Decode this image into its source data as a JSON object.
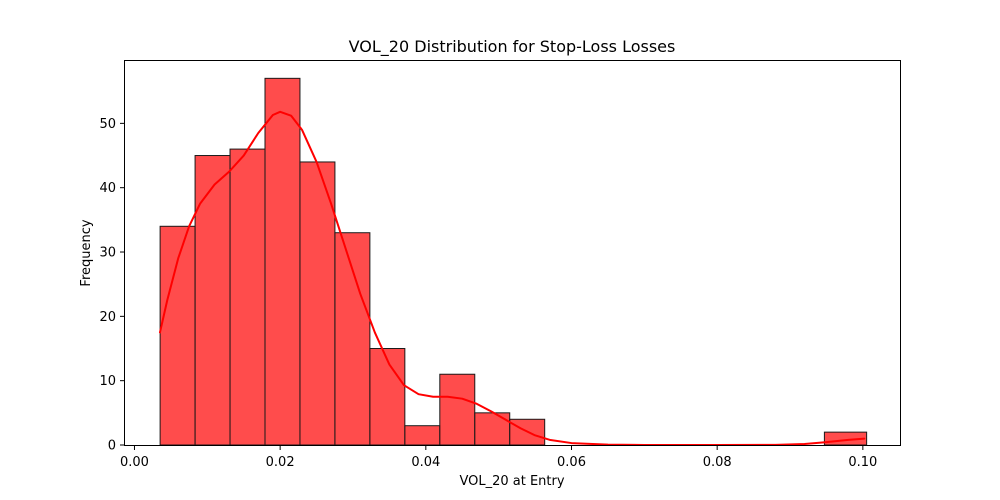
{
  "chart_data": {
    "type": "bar",
    "title": "VOL_20 Distribution for Stop-Loss Losses",
    "xlabel": "VOL_20 at Entry",
    "ylabel": "Frequency",
    "xlim": [
      -0.0013,
      0.1051
    ],
    "ylim": [
      0,
      59.85
    ],
    "xticks": [
      0.0,
      0.02,
      0.04,
      0.06,
      0.08,
      0.1
    ],
    "xtick_labels": [
      "0.00",
      "0.02",
      "0.04",
      "0.06",
      "0.08",
      "0.10"
    ],
    "yticks": [
      0,
      10,
      20,
      30,
      40,
      50
    ],
    "ytick_labels": [
      "0",
      "10",
      "20",
      "30",
      "40",
      "50"
    ],
    "grid": false,
    "legend": false,
    "bar_color": "#ff0000",
    "bar_opacity": 0.7,
    "bar_edge_color": "#1a1a1a",
    "bins": [
      {
        "x0": 0.00352,
        "x1": 0.00832,
        "count": 34
      },
      {
        "x0": 0.00832,
        "x1": 0.01312,
        "count": 45
      },
      {
        "x0": 0.01312,
        "x1": 0.01792,
        "count": 46
      },
      {
        "x0": 0.01792,
        "x1": 0.02272,
        "count": 57
      },
      {
        "x0": 0.02272,
        "x1": 0.02752,
        "count": 44
      },
      {
        "x0": 0.02752,
        "x1": 0.03232,
        "count": 33
      },
      {
        "x0": 0.03232,
        "x1": 0.03712,
        "count": 15
      },
      {
        "x0": 0.03712,
        "x1": 0.04192,
        "count": 3
      },
      {
        "x0": 0.04192,
        "x1": 0.04672,
        "count": 11
      },
      {
        "x0": 0.04672,
        "x1": 0.05152,
        "count": 5
      },
      {
        "x0": 0.05152,
        "x1": 0.05632,
        "count": 4
      },
      {
        "x0": 0.05632,
        "x1": 0.06112,
        "count": 0
      },
      {
        "x0": 0.06112,
        "x1": 0.06592,
        "count": 0
      },
      {
        "x0": 0.06592,
        "x1": 0.07072,
        "count": 0
      },
      {
        "x0": 0.07072,
        "x1": 0.07552,
        "count": 0
      },
      {
        "x0": 0.07552,
        "x1": 0.08032,
        "count": 0
      },
      {
        "x0": 0.08032,
        "x1": 0.08512,
        "count": 0
      },
      {
        "x0": 0.08512,
        "x1": 0.08992,
        "count": 0
      },
      {
        "x0": 0.08992,
        "x1": 0.09472,
        "count": 0
      },
      {
        "x0": 0.09472,
        "x1": 0.10052,
        "count": 2
      }
    ],
    "kde_color": "#ff0000",
    "kde": [
      {
        "x": 0.0035,
        "y": 17.5
      },
      {
        "x": 0.0045,
        "y": 22.5
      },
      {
        "x": 0.006,
        "y": 29.0
      },
      {
        "x": 0.0075,
        "y": 34.0
      },
      {
        "x": 0.009,
        "y": 37.5
      },
      {
        "x": 0.011,
        "y": 40.5
      },
      {
        "x": 0.013,
        "y": 42.5
      },
      {
        "x": 0.015,
        "y": 45.0
      },
      {
        "x": 0.017,
        "y": 48.5
      },
      {
        "x": 0.019,
        "y": 51.3
      },
      {
        "x": 0.02,
        "y": 51.8
      },
      {
        "x": 0.0215,
        "y": 51.2
      },
      {
        "x": 0.023,
        "y": 49.0
      },
      {
        "x": 0.025,
        "y": 44.0
      },
      {
        "x": 0.027,
        "y": 37.5
      },
      {
        "x": 0.029,
        "y": 30.5
      },
      {
        "x": 0.031,
        "y": 23.5
      },
      {
        "x": 0.033,
        "y": 17.5
      },
      {
        "x": 0.035,
        "y": 12.5
      },
      {
        "x": 0.037,
        "y": 9.3
      },
      {
        "x": 0.039,
        "y": 7.9
      },
      {
        "x": 0.041,
        "y": 7.5
      },
      {
        "x": 0.043,
        "y": 7.5
      },
      {
        "x": 0.045,
        "y": 7.2
      },
      {
        "x": 0.047,
        "y": 6.4
      },
      {
        "x": 0.049,
        "y": 5.2
      },
      {
        "x": 0.051,
        "y": 3.9
      },
      {
        "x": 0.053,
        "y": 2.6
      },
      {
        "x": 0.055,
        "y": 1.5
      },
      {
        "x": 0.057,
        "y": 0.8
      },
      {
        "x": 0.06,
        "y": 0.3
      },
      {
        "x": 0.065,
        "y": 0.05
      },
      {
        "x": 0.07,
        "y": 0.0
      },
      {
        "x": 0.08,
        "y": 0.0
      },
      {
        "x": 0.088,
        "y": 0.02
      },
      {
        "x": 0.092,
        "y": 0.15
      },
      {
        "x": 0.095,
        "y": 0.45
      },
      {
        "x": 0.098,
        "y": 0.8
      },
      {
        "x": 0.1002,
        "y": 1.0
      }
    ]
  }
}
